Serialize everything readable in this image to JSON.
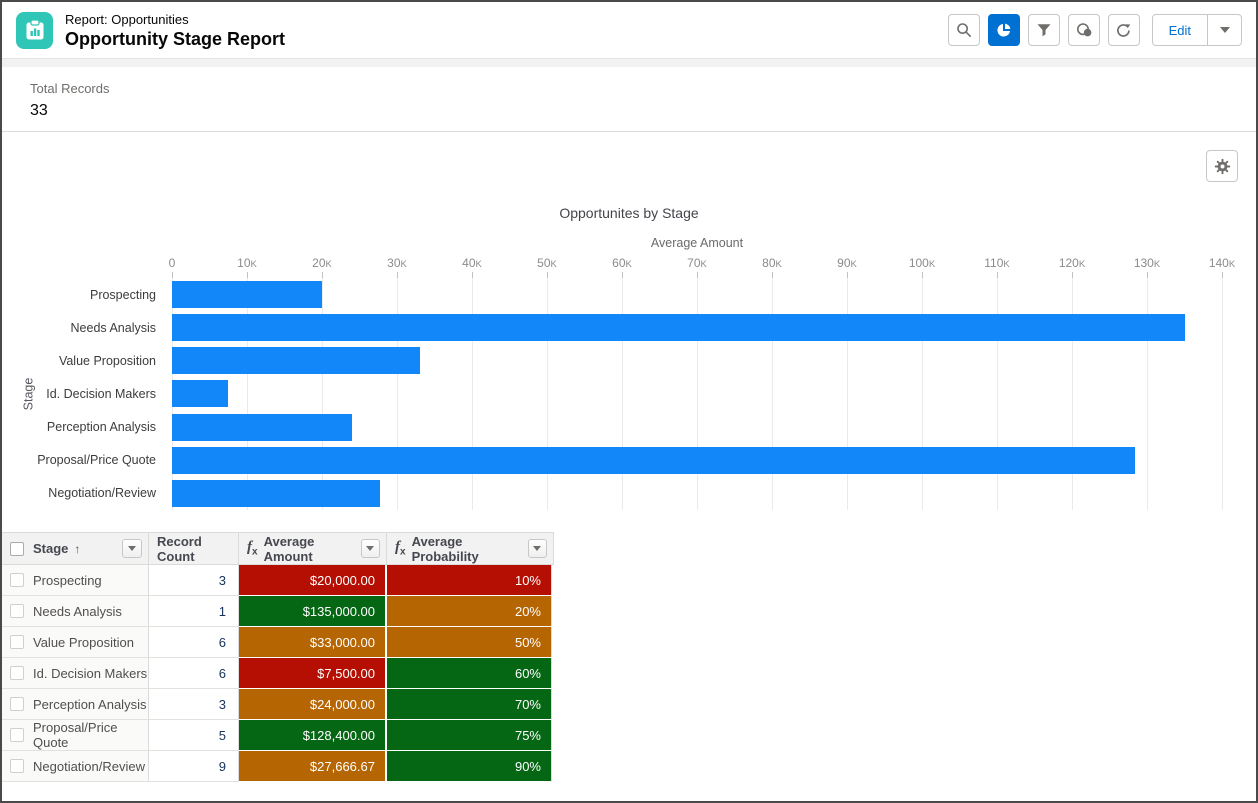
{
  "header": {
    "context": "Report: Opportunities",
    "title": "Opportunity Stage Report",
    "icon_color": "#2fc6b7",
    "toolbar": {
      "edit_label": "Edit"
    }
  },
  "summary": {
    "label": "Total Records",
    "value": "33"
  },
  "chart_data": {
    "type": "bar",
    "orientation": "horizontal",
    "title": "Opportunites by Stage",
    "xlabel": "Average Amount",
    "ylabel": "Stage",
    "categories": [
      "Prospecting",
      "Needs Analysis",
      "Value Proposition",
      "Id. Decision Makers",
      "Perception Analysis",
      "Proposal/Price Quote",
      "Negotiation/Review"
    ],
    "values": [
      20000,
      135000,
      33000,
      7500,
      24000,
      128400,
      27666.67
    ],
    "xlim": [
      0,
      140000
    ],
    "x_tick_labels": [
      "0",
      "10K",
      "20K",
      "30K",
      "40K",
      "50K",
      "60K",
      "70K",
      "80K",
      "90K",
      "100K",
      "110K",
      "120K",
      "130K",
      "140K"
    ],
    "bar_color": "#1287fa",
    "grid": true,
    "legend": false
  },
  "table": {
    "columns": [
      {
        "label": "Stage",
        "sort": "asc"
      },
      {
        "label": "Record Count"
      },
      {
        "label": "Average Amount",
        "formula": "fx"
      },
      {
        "label": "Average Probability",
        "formula": "fx"
      }
    ],
    "status_colors": {
      "red": "#b50f04",
      "green": "#056714",
      "orange": "#b56502"
    },
    "rows": [
      {
        "stage": "Prospecting",
        "record_count": "3",
        "average_amount": "$20,000.00",
        "amount_color": "red",
        "average_probability": "10%",
        "probability_color": "red"
      },
      {
        "stage": "Needs Analysis",
        "record_count": "1",
        "average_amount": "$135,000.00",
        "amount_color": "green",
        "average_probability": "20%",
        "probability_color": "orange"
      },
      {
        "stage": "Value Proposition",
        "record_count": "6",
        "average_amount": "$33,000.00",
        "amount_color": "orange",
        "average_probability": "50%",
        "probability_color": "orange"
      },
      {
        "stage": "Id. Decision Makers",
        "record_count": "6",
        "average_amount": "$7,500.00",
        "amount_color": "red",
        "average_probability": "60%",
        "probability_color": "green"
      },
      {
        "stage": "Perception Analysis",
        "record_count": "3",
        "average_amount": "$24,000.00",
        "amount_color": "orange",
        "average_probability": "70%",
        "probability_color": "green"
      },
      {
        "stage": "Proposal/Price Quote",
        "record_count": "5",
        "average_amount": "$128,400.00",
        "amount_color": "green",
        "average_probability": "75%",
        "probability_color": "green"
      },
      {
        "stage": "Negotiation/Review",
        "record_count": "9",
        "average_amount": "$27,666.67",
        "amount_color": "orange",
        "average_probability": "90%",
        "probability_color": "green"
      }
    ]
  }
}
